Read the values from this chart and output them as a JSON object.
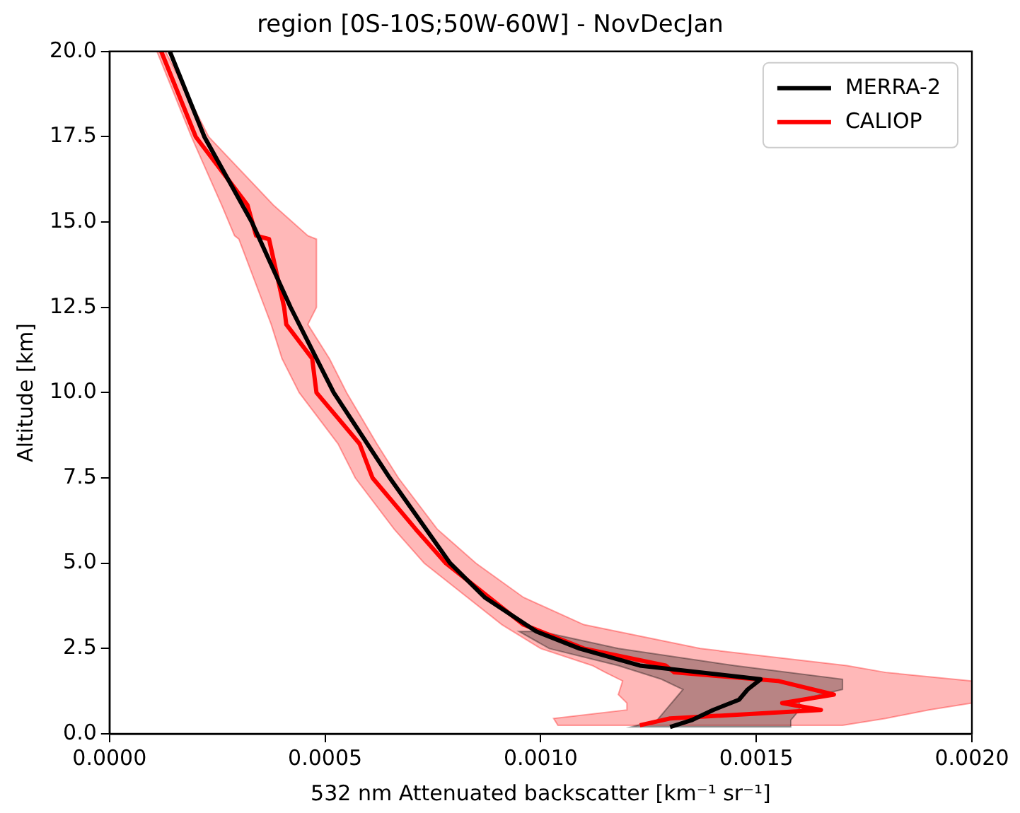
{
  "chart_data": {
    "type": "line",
    "orientation": "horizontal",
    "title": "region [0S-10S;50W-60W] - NovDecJan",
    "xlabel": "532 nm Attenuated backscatter [km⁻¹ sr⁻¹]",
    "ylabel": "Altitude [km]",
    "xlim": [
      0,
      0.002
    ],
    "xticks": [
      {
        "value": 0,
        "label": "0.0000"
      },
      {
        "value": 0.0005,
        "label": "0.0005"
      },
      {
        "value": 0.001,
        "label": "0.0010"
      },
      {
        "value": 0.0015,
        "label": "0.0015"
      },
      {
        "value": 0.002,
        "label": "0.0020"
      }
    ],
    "ylim": [
      0,
      20
    ],
    "yticks": [
      {
        "value": 0,
        "label": "0.0"
      },
      {
        "value": 2.5,
        "label": "2.5"
      },
      {
        "value": 5,
        "label": "5.0"
      },
      {
        "value": 7.5,
        "label": "7.5"
      },
      {
        "value": 10,
        "label": "10.0"
      },
      {
        "value": 12.5,
        "label": "12.5"
      },
      {
        "value": 15,
        "label": "15.0"
      },
      {
        "value": 17.5,
        "label": "17.5"
      },
      {
        "value": 20,
        "label": "20.0"
      }
    ],
    "grid": false,
    "legend": "top right",
    "series": [
      {
        "name": "MERRA-2",
        "color": "#000000",
        "x": [
          20,
          17.5,
          15,
          12.5,
          10,
          7.5,
          5,
          4,
          3,
          2.5,
          2,
          1.6,
          1.3,
          1,
          0.7,
          0.4,
          0.2
        ],
        "values": [
          0.00014,
          0.00022,
          0.00033,
          0.00042,
          0.00052,
          0.00065,
          0.00079,
          0.00087,
          0.00099,
          0.00109,
          0.00123,
          0.00151,
          0.00148,
          0.00146,
          0.0014,
          0.00135,
          0.0013
        ],
        "lower": [
          null,
          null,
          null,
          null,
          null,
          null,
          null,
          null,
          0.00095,
          0.00102,
          0.00118,
          0.00128,
          0.00133,
          0.00131,
          0.00129,
          0.00127,
          0.00121
        ],
        "upper": [
          null,
          null,
          null,
          null,
          null,
          null,
          null,
          null,
          0.001,
          0.00118,
          0.00145,
          0.0017,
          0.0017,
          0.0016,
          0.0016,
          0.00158,
          0.00158
        ]
      },
      {
        "name": "CALIOP",
        "color": "#ff0000",
        "x": [
          20,
          17.5,
          15.5,
          14.6,
          14.5,
          12.5,
          12,
          11,
          10,
          8.5,
          7.5,
          6,
          5,
          4,
          3.2,
          2.5,
          2,
          1.8,
          1.55,
          1.15,
          0.9,
          0.7,
          0.45,
          0.25
        ],
        "values": [
          0.00012,
          0.0002,
          0.00032,
          0.00034,
          0.00037,
          0.000405,
          0.00041,
          0.00047,
          0.00048,
          0.00058,
          0.00061,
          0.00071,
          0.00078,
          0.00088,
          0.00096,
          0.0011,
          0.00129,
          0.00131,
          0.00155,
          0.00168,
          0.00156,
          0.00165,
          0.0013,
          0.00123
        ],
        "lower": [
          0.00011,
          0.00019,
          0.00026,
          0.00029,
          0.0003,
          0.00036,
          0.000375,
          0.0004,
          0.00044,
          0.00053,
          0.00057,
          0.00066,
          0.00073,
          0.00083,
          0.00091,
          0.001,
          0.00112,
          0.00115,
          0.00119,
          0.00118,
          0.0012,
          0.0012,
          0.00103,
          0.00104
        ],
        "upper": [
          0.00013,
          0.00023,
          0.00038,
          0.00046,
          0.00048,
          0.00048,
          0.00046,
          0.00051,
          0.00055,
          0.00062,
          0.00067,
          0.00076,
          0.00085,
          0.00096,
          0.0011,
          0.00137,
          0.00171,
          0.0018,
          0.002,
          0.002,
          0.002,
          0.0019,
          0.0018,
          0.0017
        ]
      }
    ]
  }
}
